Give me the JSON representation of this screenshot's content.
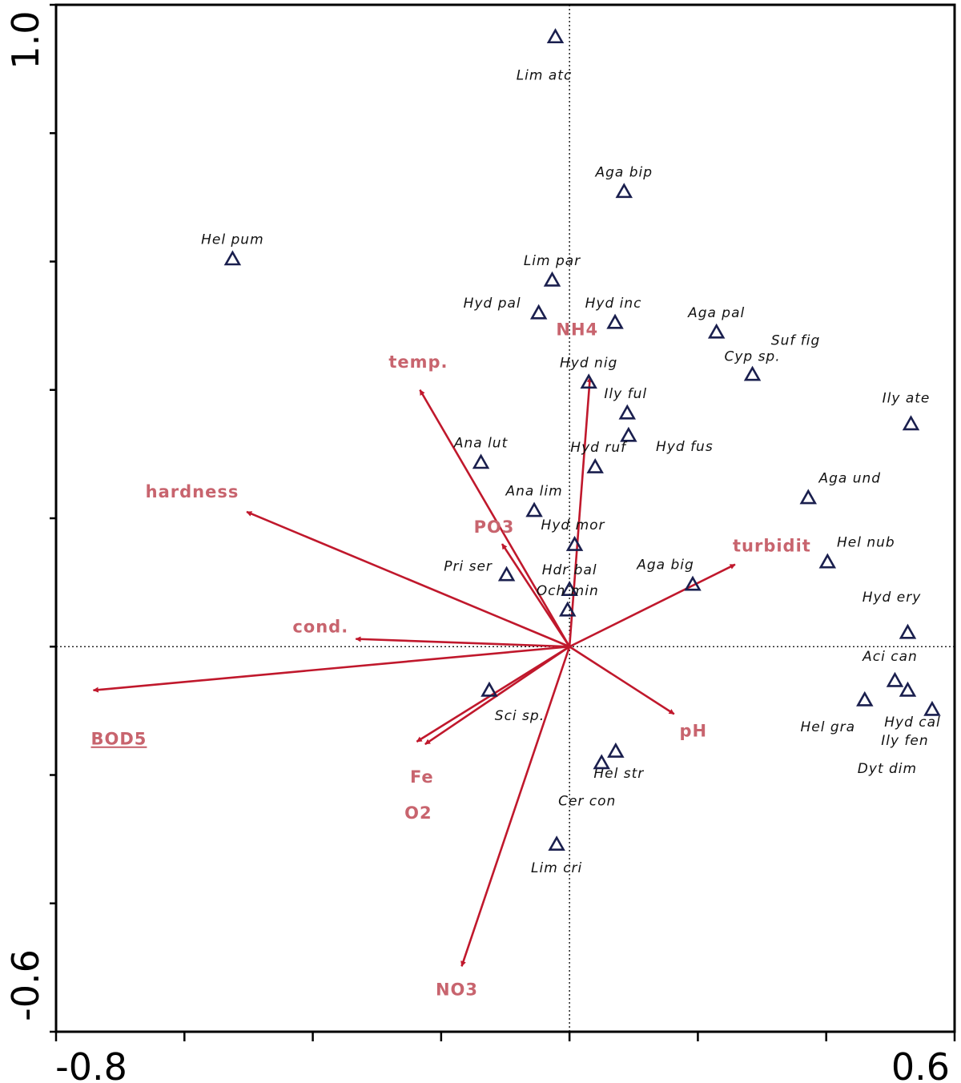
{
  "chart_data": {
    "type": "scatter",
    "subtype": "ordination-biplot",
    "title": "",
    "xlabel": "",
    "ylabel": "",
    "xlim": [
      -0.8,
      0.6
    ],
    "ylim": [
      -0.6,
      1.0
    ],
    "x_tick_labels": [
      {
        "value": -0.8,
        "label": "-0.8"
      },
      {
        "value": 0.6,
        "label": "0.6"
      }
    ],
    "y_tick_labels": [
      {
        "value": 1.0,
        "label": "1.0"
      },
      {
        "value": -0.6,
        "label": "-0.6"
      }
    ],
    "minor_tick_step": 0.2,
    "reference_lines": {
      "x": 0,
      "y": 0,
      "style": "dotted"
    },
    "grid": false,
    "arrow_color": "#c0182c",
    "label_color": "#c8646e",
    "marker_color": "#1a1f4e",
    "environmental_vectors": [
      {
        "name": "NH4",
        "x": 0.032,
        "y": 0.42
      },
      {
        "name": "temp.",
        "x": -0.233,
        "y": 0.4
      },
      {
        "name": "hardness",
        "x": -0.503,
        "y": 0.21
      },
      {
        "name": "PO3",
        "x": -0.105,
        "y": 0.16
      },
      {
        "name": "cond.",
        "x": -0.333,
        "y": 0.012
      },
      {
        "name": "BOD5",
        "x": -0.742,
        "y": -0.068
      },
      {
        "name": "Fe",
        "x": -0.225,
        "y": -0.152
      },
      {
        "name": "O2",
        "x": -0.238,
        "y": -0.148
      },
      {
        "name": "NO3",
        "x": -0.168,
        "y": -0.498
      },
      {
        "name": "pH",
        "x": 0.163,
        "y": -0.105
      },
      {
        "name": "turbidit",
        "x": 0.258,
        "y": 0.128
      }
    ],
    "species": [
      {
        "name": "Lim atc",
        "x": -0.022,
        "y": 0.951
      },
      {
        "name": "Aga bip",
        "x": 0.085,
        "y": 0.71
      },
      {
        "name": "Hel pum",
        "x": -0.525,
        "y": 0.605
      },
      {
        "name": "Lim par",
        "x": -0.027,
        "y": 0.572
      },
      {
        "name": "Hyd pal",
        "x": -0.048,
        "y": 0.521
      },
      {
        "name": "Hyd inc",
        "x": 0.071,
        "y": 0.506
      },
      {
        "name": "Aga pal",
        "x": 0.229,
        "y": 0.491
      },
      {
        "name": "Suf fig",
        "x": 0.285,
        "y": 0.425
      },
      {
        "name": "Cyp sp.",
        "x": 0.285,
        "y": 0.425
      },
      {
        "name": "Hyd nig",
        "x": 0.03,
        "y": 0.413
      },
      {
        "name": "Ily ful",
        "x": 0.09,
        "y": 0.365
      },
      {
        "name": "Hyd fus",
        "x": 0.092,
        "y": 0.33
      },
      {
        "name": "Ily ate",
        "x": 0.532,
        "y": 0.348
      },
      {
        "name": "Ana lut",
        "x": -0.138,
        "y": 0.288
      },
      {
        "name": "Hyd ruf",
        "x": 0.04,
        "y": 0.281
      },
      {
        "name": "Aga und",
        "x": 0.372,
        "y": 0.233
      },
      {
        "name": "Ana lim",
        "x": -0.055,
        "y": 0.213
      },
      {
        "name": "Hyd mor",
        "x": 0.008,
        "y": 0.16
      },
      {
        "name": "Hel nub",
        "x": 0.402,
        "y": 0.133
      },
      {
        "name": "Pri ser",
        "x": -0.098,
        "y": 0.113
      },
      {
        "name": "Aga big",
        "x": 0.192,
        "y": 0.098
      },
      {
        "name": "Hdr bal",
        "x": 0.0,
        "y": 0.09
      },
      {
        "name": "Och min",
        "x": -0.003,
        "y": 0.058
      },
      {
        "name": "Hyd ery",
        "x": 0.527,
        "y": 0.023
      },
      {
        "name": "Aci can",
        "x": 0.507,
        "y": -0.052
      },
      {
        "name": "Hyd cal",
        "x": 0.527,
        "y": -0.067
      },
      {
        "name": "Hel gra",
        "x": 0.46,
        "y": -0.082
      },
      {
        "name": "Ily fen",
        "x": 0.565,
        "y": -0.097
      },
      {
        "name": "Dyt dim",
        "x": 0.565,
        "y": -0.097
      },
      {
        "name": "Sci sp.",
        "x": -0.125,
        "y": -0.067
      },
      {
        "name": "Hel str",
        "x": 0.072,
        "y": -0.162
      },
      {
        "name": "Cer con",
        "x": 0.05,
        "y": -0.18
      },
      {
        "name": "Lim cri",
        "x": -0.02,
        "y": -0.307
      }
    ]
  }
}
